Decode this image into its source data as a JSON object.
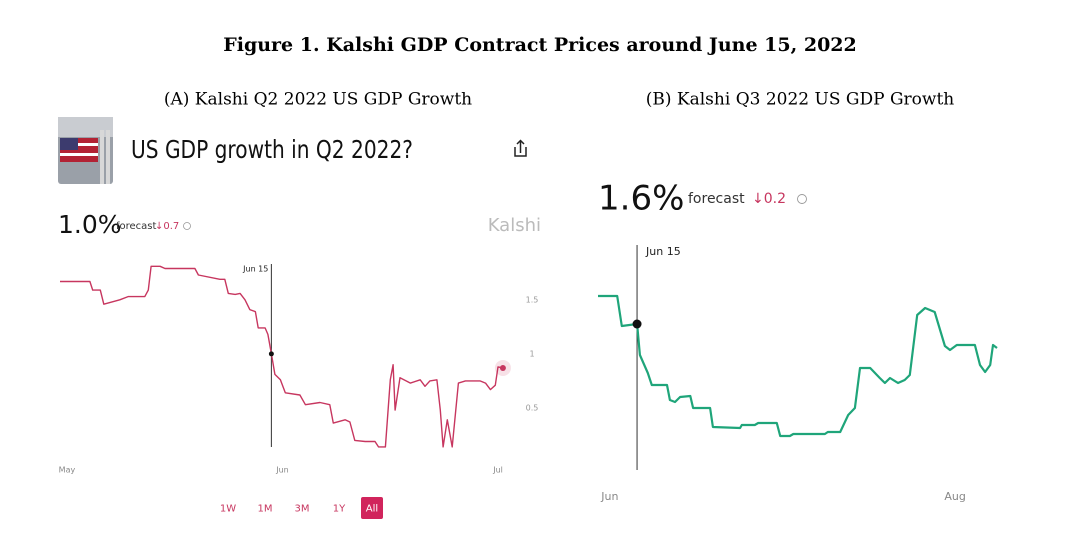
{
  "figure_title": "Figure 1. Kalshi GDP Contract Prices around June 15, 2022",
  "chart_data": [
    {
      "type": "line",
      "panel_title": "(A) Kalshi Q2 2022 US GDP Growth",
      "title": "US GDP growth in Q2 2022?",
      "forecast_value": "1.0%",
      "forecast_label": "forecast",
      "forecast_change": "↓0.7",
      "brand": "Kalshi",
      "annotation": {
        "label": "Jun 15",
        "x": 30.4
      },
      "x": [
        0,
        4.3,
        4.7,
        5.8,
        6.3,
        8.6,
        9.8,
        12.2,
        12.7,
        13.1,
        14.4,
        15.1,
        19.4,
        19.9,
        23,
        23.7,
        24.2,
        25.2,
        25.9,
        26.6,
        27.3,
        28.1,
        28.5,
        29.5,
        29.9,
        30.4,
        30.9,
        31.7,
        32.4,
        34.5,
        35.3,
        37.4,
        38.8,
        39.3,
        41,
        41.7,
        42.4,
        43.9,
        45.3,
        45.8,
        46.8,
        47.5,
        47.9,
        48.2,
        48.9,
        50.4,
        51.8,
        52.5,
        53.2,
        54.2,
        54.7,
        55.1,
        55.7,
        56.4,
        57.3,
        58.3,
        60.4,
        61.2,
        61.9,
        62.6,
        63,
        63.7
      ],
      "series": [
        {
          "color": "#c7365f",
          "values": [
            1.67,
            1.67,
            1.59,
            1.59,
            1.46,
            1.5,
            1.53,
            1.53,
            1.59,
            1.81,
            1.81,
            1.79,
            1.79,
            1.73,
            1.69,
            1.69,
            1.56,
            1.55,
            1.56,
            1.5,
            1.41,
            1.39,
            1.24,
            1.24,
            1.18,
            1.0,
            0.81,
            0.76,
            0.64,
            0.62,
            0.53,
            0.55,
            0.53,
            0.36,
            0.39,
            0.37,
            0.2,
            0.19,
            0.19,
            0.14,
            0.14,
            0.76,
            0.9,
            0.48,
            0.78,
            0.73,
            0.76,
            0.7,
            0.75,
            0.76,
            0.48,
            0.14,
            0.39,
            0.14,
            0.73,
            0.75,
            0.75,
            0.73,
            0.67,
            0.71,
            0.88,
            0.87
          ]
        }
      ],
      "xlim": [
        0,
        64
      ],
      "xticks": [
        {
          "value": 1,
          "label": "May"
        },
        {
          "value": 32,
          "label": "Jun"
        },
        {
          "value": 63,
          "label": "Jul"
        }
      ],
      "ylim": [
        0,
        1.85
      ],
      "yticks": [
        0.5,
        1,
        1.5
      ],
      "range_buttons": [
        "1W",
        "1M",
        "3M",
        "1Y",
        "All"
      ],
      "selected_range": 4
    },
    {
      "type": "line",
      "panel_title": "(B) Kalshi Q3 2022 US GDP Growth",
      "forecast_value": "1.6%",
      "forecast_label": "forecast",
      "forecast_change": "↓0.2",
      "annotation": {
        "label": "Jun 15",
        "x": 6.9
      },
      "x": [
        0,
        3.4,
        4.2,
        6.9,
        7.4,
        8.8,
        9.5,
        12.2,
        12.7,
        13.6,
        14.5,
        16.3,
        16.8,
        19.8,
        20.3,
        25.1,
        25.4,
        27.7,
        28.3,
        31.6,
        32.2,
        33.9,
        34.5,
        40.1,
        40.6,
        42.8,
        44.2,
        45.4,
        46.3,
        48.1,
        49.8,
        50.7,
        51.6,
        53,
        54.2,
        55.1,
        56.4,
        57.8,
        59.5,
        61.3,
        62.2,
        63.4,
        66.6,
        67.5,
        68.4,
        69.3,
        69.8,
        70.5
      ],
      "series": [
        {
          "color": "#1fa57a",
          "values": [
            2.12,
            2.12,
            1.82,
            1.84,
            1.53,
            1.35,
            1.23,
            1.23,
            1.08,
            1.06,
            1.11,
            1.12,
            1.0,
            1.0,
            0.81,
            0.8,
            0.83,
            0.83,
            0.85,
            0.85,
            0.72,
            0.72,
            0.74,
            0.74,
            0.76,
            0.76,
            0.93,
            1.0,
            1.4,
            1.4,
            1.3,
            1.25,
            1.3,
            1.25,
            1.28,
            1.33,
            1.93,
            2.0,
            1.96,
            1.62,
            1.58,
            1.63,
            1.63,
            1.43,
            1.36,
            1.43,
            1.63,
            1.6
          ]
        }
      ],
      "xlim": [
        0,
        70.5
      ],
      "xticks": [
        {
          "value": 2.1,
          "label": "Jun"
        },
        {
          "value": 63.1,
          "label": "Aug"
        }
      ],
      "ylim": [
        0.38,
        2.68
      ]
    }
  ]
}
